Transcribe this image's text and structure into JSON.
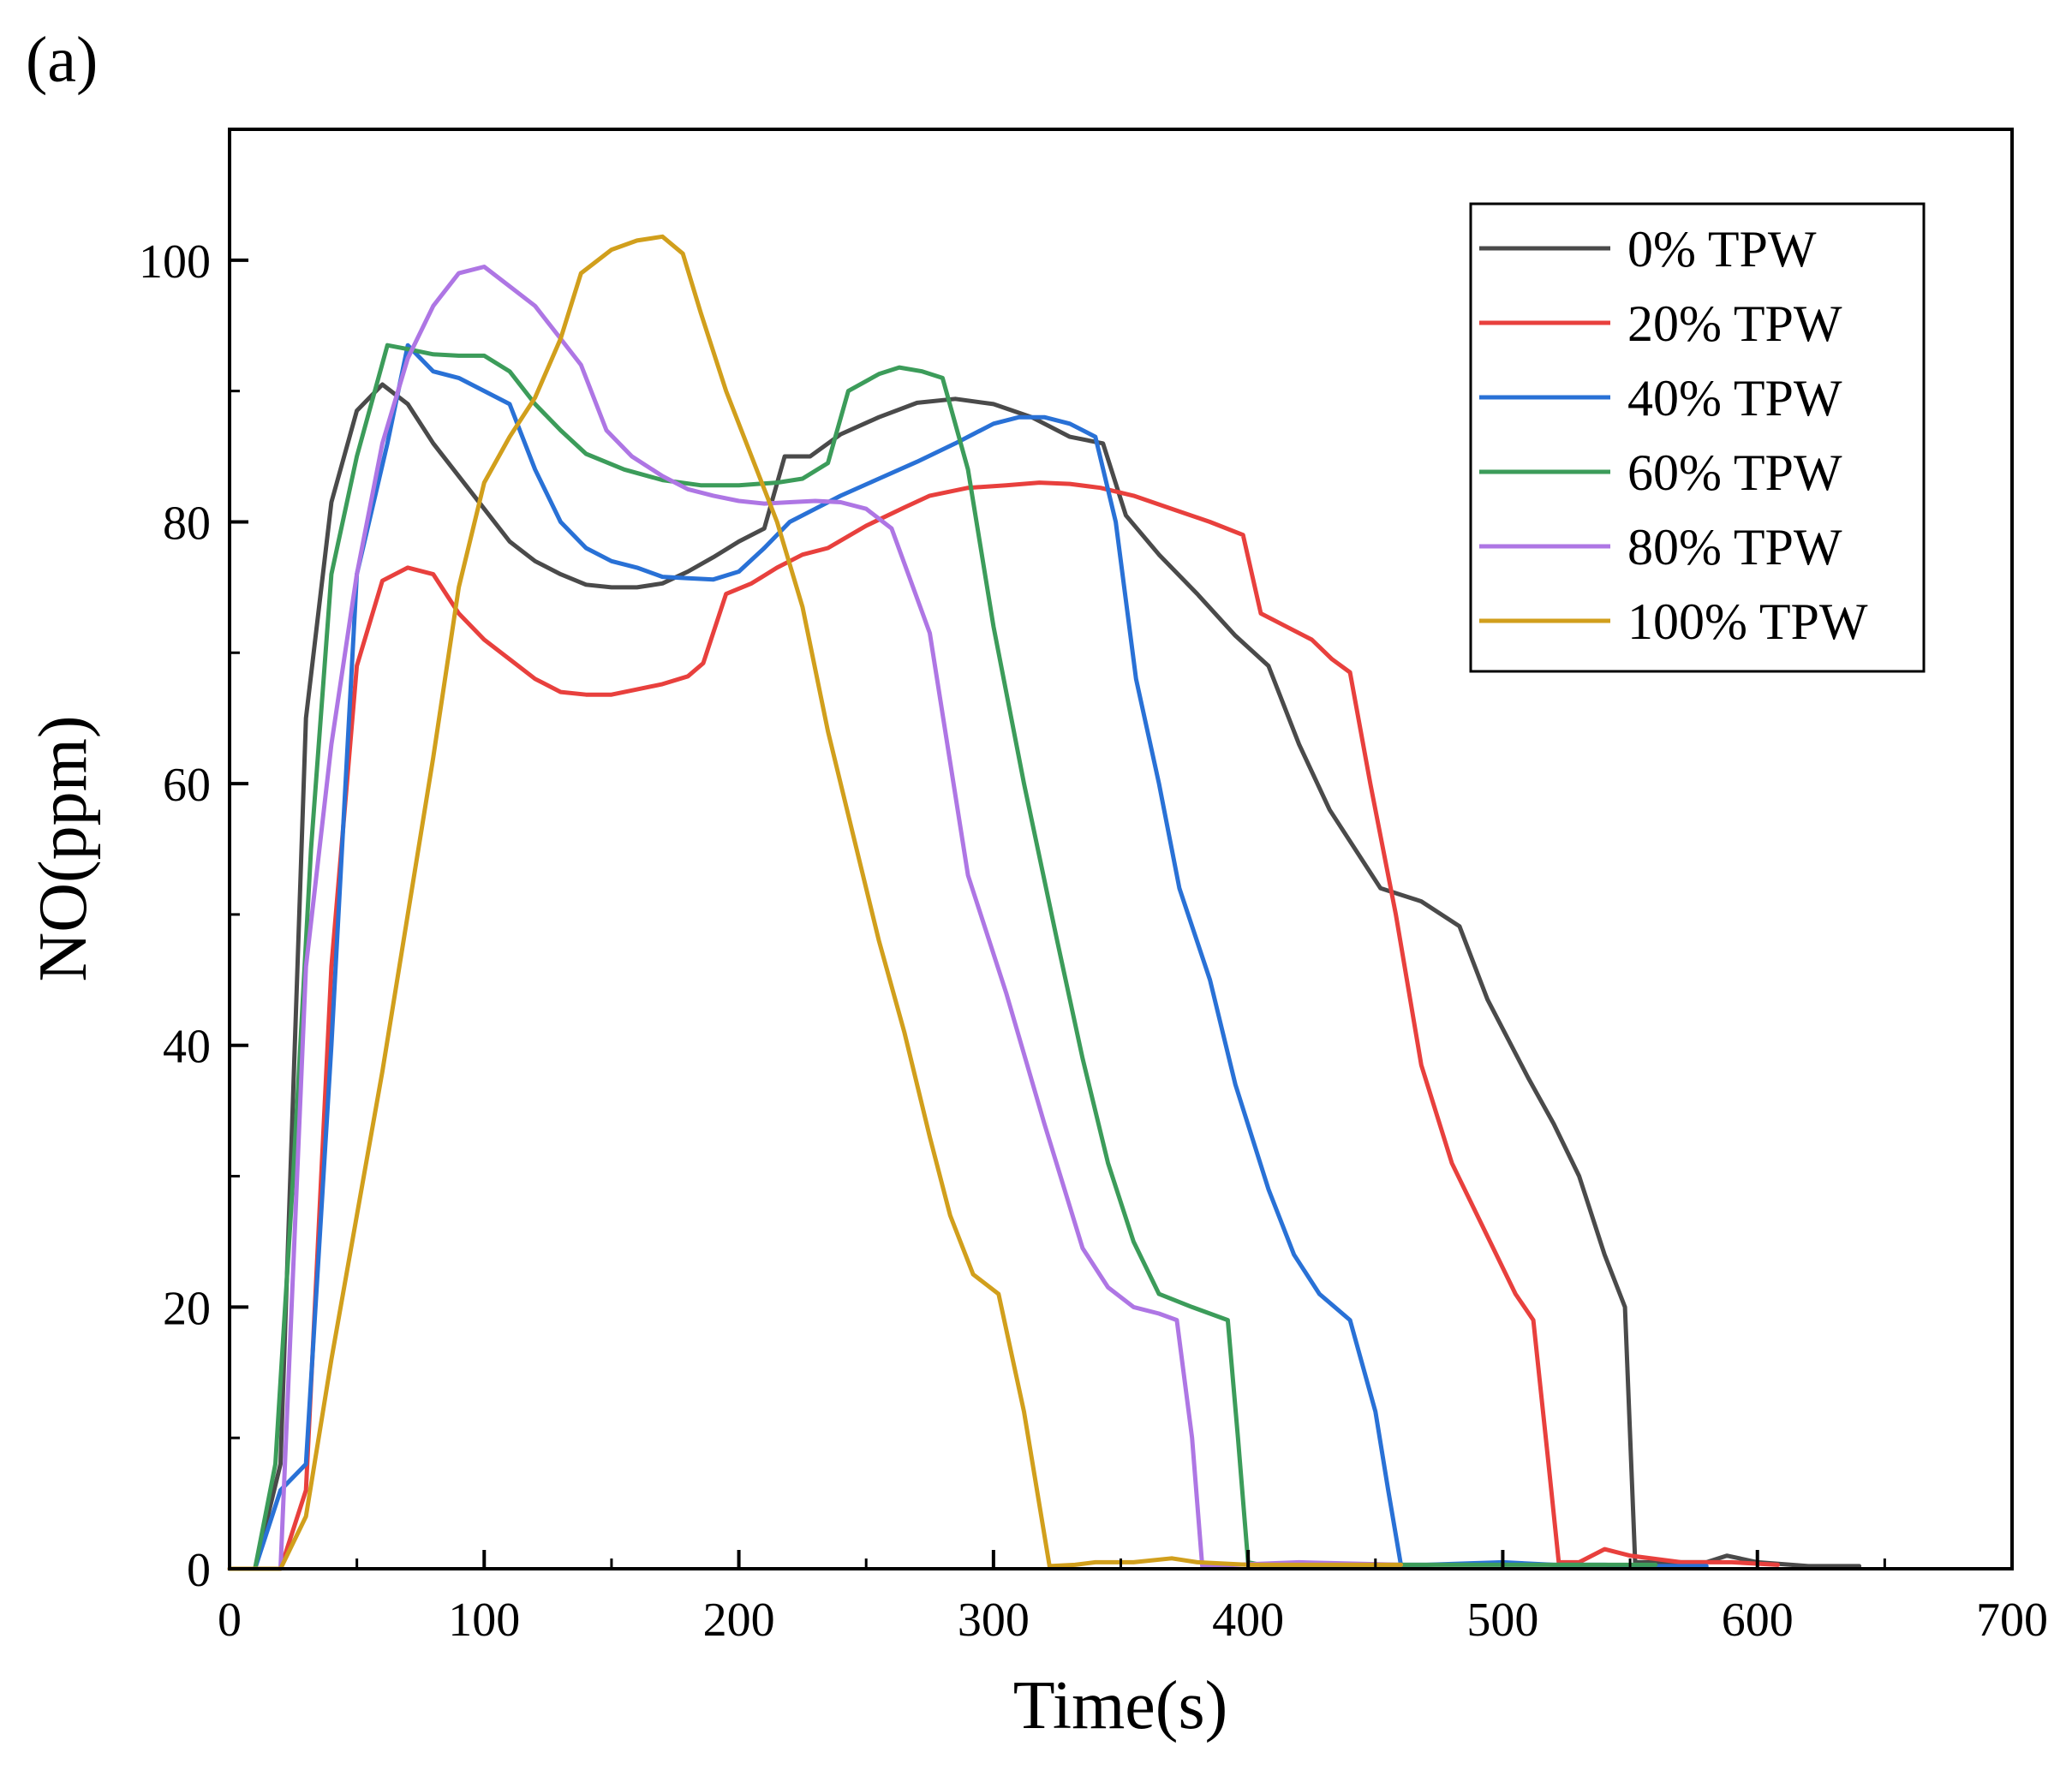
{
  "panel_label": "(a)",
  "chart_data": {
    "type": "line",
    "title": "",
    "xlabel": "Time(s)",
    "ylabel": "NO(ppm)",
    "xlim": [
      0,
      700
    ],
    "ylim": [
      0,
      110
    ],
    "xticks": [
      0,
      100,
      200,
      300,
      400,
      500,
      600,
      700
    ],
    "yticks": [
      0,
      20,
      40,
      60,
      80,
      100
    ],
    "x_tick_labels": [
      "0",
      "100",
      "200",
      "300",
      "400",
      "500",
      "600",
      "700"
    ],
    "y_tick_labels": [
      "0",
      "20",
      "40",
      "60",
      "80",
      "100"
    ],
    "grid": false,
    "legend_position": "top-right",
    "series": [
      {
        "name": "0% TPW",
        "color": "#4a4a4a",
        "x": [
          0,
          10,
          20,
          30,
          40,
          50,
          60,
          70,
          80,
          100,
          110,
          120,
          130,
          140,
          150,
          160,
          170,
          180,
          190,
          200,
          210,
          218,
          228,
          240,
          255,
          270,
          285,
          300,
          315,
          330,
          343,
          352,
          365,
          380,
          395,
          408,
          420,
          432,
          452,
          468,
          483,
          494,
          510,
          520,
          530,
          540,
          548,
          552,
          560,
          580,
          588,
          600,
          620,
          640
        ],
        "y": [
          0,
          0,
          8,
          65,
          81.5,
          88.5,
          90.5,
          89,
          86,
          81,
          78.5,
          77,
          76,
          75.2,
          75,
          75,
          75.3,
          76.2,
          77.3,
          78.5,
          79.5,
          85,
          85,
          86.7,
          88,
          89.1,
          89.4,
          89,
          88,
          86.5,
          86,
          80.5,
          77.5,
          74.5,
          71.3,
          69,
          63,
          58,
          52,
          51,
          49.1,
          43.5,
          37.5,
          34,
          30,
          24,
          20,
          0.5,
          0.5,
          0.5,
          1,
          0.5,
          0.2,
          0.2
        ]
      },
      {
        "name": "20% TPW",
        "color": "#e8403d",
        "x": [
          0,
          10,
          20,
          30,
          40,
          50,
          60,
          70,
          80,
          90,
          100,
          110,
          120,
          130,
          140,
          150,
          160,
          170,
          180,
          186,
          195,
          205,
          215,
          225,
          235,
          250,
          265,
          275,
          290,
          305,
          318,
          330,
          342,
          355,
          370,
          385,
          398,
          405,
          415,
          425,
          433,
          440,
          448,
          458,
          468,
          480,
          495,
          505,
          512,
          518,
          522,
          530,
          540,
          550,
          570,
          590,
          608
        ],
        "y": [
          0,
          0,
          0,
          6,
          46,
          69,
          75.5,
          76.5,
          76,
          73,
          71,
          69.5,
          68,
          67,
          66.8,
          66.8,
          67.2,
          67.6,
          68.2,
          69.2,
          74.5,
          75.3,
          76.5,
          77.5,
          78,
          79.7,
          81.1,
          82,
          82.6,
          82.8,
          83,
          82.9,
          82.6,
          82,
          81,
          80,
          79,
          73,
          72,
          71,
          69.5,
          68.5,
          60,
          50,
          38.5,
          31,
          25,
          21,
          19,
          8,
          0.5,
          0.5,
          1.5,
          1,
          0.5,
          0.5,
          0.3
        ]
      },
      {
        "name": "40% TPW",
        "color": "#2971d6",
        "x": [
          0,
          10,
          20,
          30,
          40,
          50,
          62,
          70,
          80,
          90,
          100,
          110,
          120,
          130,
          140,
          150,
          160,
          170,
          180,
          190,
          200,
          210,
          220,
          230,
          240,
          255,
          270,
          285,
          300,
          310,
          320,
          330,
          340,
          348,
          356,
          365,
          373,
          385,
          395,
          408,
          418,
          428,
          440,
          450,
          455,
          460,
          470,
          500,
          520,
          540,
          560,
          580
        ],
        "y": [
          0,
          0,
          6,
          8,
          40,
          76,
          86,
          93.5,
          91.5,
          91,
          90,
          89,
          84,
          80,
          78,
          77,
          76.5,
          75.8,
          75.7,
          75.6,
          76.2,
          78,
          80,
          81,
          82,
          83.3,
          84.6,
          86,
          87.5,
          88,
          88,
          87.5,
          86.5,
          80,
          68,
          60,
          52,
          45,
          37,
          29,
          24,
          21,
          19,
          12,
          6,
          0.3,
          0.3,
          0.5,
          0.3,
          0.3,
          0.2,
          0.2
        ]
      },
      {
        "name": "60% TPW",
        "color": "#3c9c5a",
        "x": [
          0,
          10,
          18,
          25,
          32,
          40,
          50,
          62,
          70,
          80,
          90,
          100,
          110,
          120,
          130,
          140,
          155,
          170,
          185,
          200,
          215,
          225,
          235,
          243,
          255,
          263,
          272,
          280,
          290,
          300,
          312,
          325,
          335,
          345,
          355,
          365,
          378,
          392,
          396,
          400,
          405,
          420,
          440,
          480,
          520,
          560
        ],
        "y": [
          0,
          0,
          8,
          30,
          55,
          76,
          85,
          93.5,
          93.2,
          92.8,
          92.7,
          92.7,
          91.5,
          89,
          87,
          85.2,
          84,
          83.2,
          82.8,
          82.8,
          83,
          83.3,
          84.5,
          90,
          91.3,
          91.8,
          91.5,
          91,
          84,
          72,
          60,
          48,
          39,
          31,
          25,
          21,
          20,
          19,
          10,
          0.5,
          0.3,
          0.3,
          0.3,
          0.3,
          0.3,
          0.3
        ]
      },
      {
        "name": "80% TPW",
        "color": "#ae76e4",
        "x": [
          0,
          10,
          20,
          30,
          40,
          50,
          60,
          70,
          80,
          90,
          100,
          110,
          120,
          130,
          138,
          148,
          158,
          170,
          180,
          190,
          200,
          210,
          220,
          230,
          240,
          250,
          260,
          275,
          290,
          305,
          320,
          335,
          345,
          355,
          365,
          372,
          378,
          382,
          395,
          420,
          460
        ],
        "y": [
          0,
          0,
          0,
          46,
          63,
          76,
          86,
          92.5,
          96.5,
          99,
          99.5,
          98,
          96.5,
          94,
          92,
          87,
          85,
          83.5,
          82.5,
          82,
          81.6,
          81.4,
          81.5,
          81.6,
          81.5,
          81,
          79.5,
          71.5,
          53,
          44,
          34,
          24.5,
          21.5,
          20,
          19.5,
          19,
          10,
          0.2,
          0.3,
          0.5,
          0.3
        ]
      },
      {
        "name": "100% TPW",
        "color": "#d19f1c",
        "x": [
          0,
          10,
          20,
          30,
          40,
          50,
          60,
          70,
          80,
          90,
          100,
          110,
          120,
          130,
          138,
          150,
          160,
          170,
          178,
          185,
          195,
          205,
          215,
          225,
          235,
          245,
          255,
          265,
          275,
          283,
          292,
          302,
          312,
          322,
          332,
          340,
          355,
          370,
          380,
          400,
          430,
          460
        ],
        "y": [
          0,
          0,
          0,
          4,
          16,
          27,
          38,
          50,
          62,
          75,
          83,
          86.5,
          89.5,
          94,
          99,
          100.8,
          101.5,
          101.8,
          100.5,
          96,
          90,
          85,
          80,
          73.5,
          64,
          56,
          48,
          41,
          33,
          27,
          22.5,
          21,
          12,
          0.2,
          0.3,
          0.5,
          0.5,
          0.8,
          0.5,
          0.3,
          0.3,
          0.3
        ]
      }
    ]
  }
}
